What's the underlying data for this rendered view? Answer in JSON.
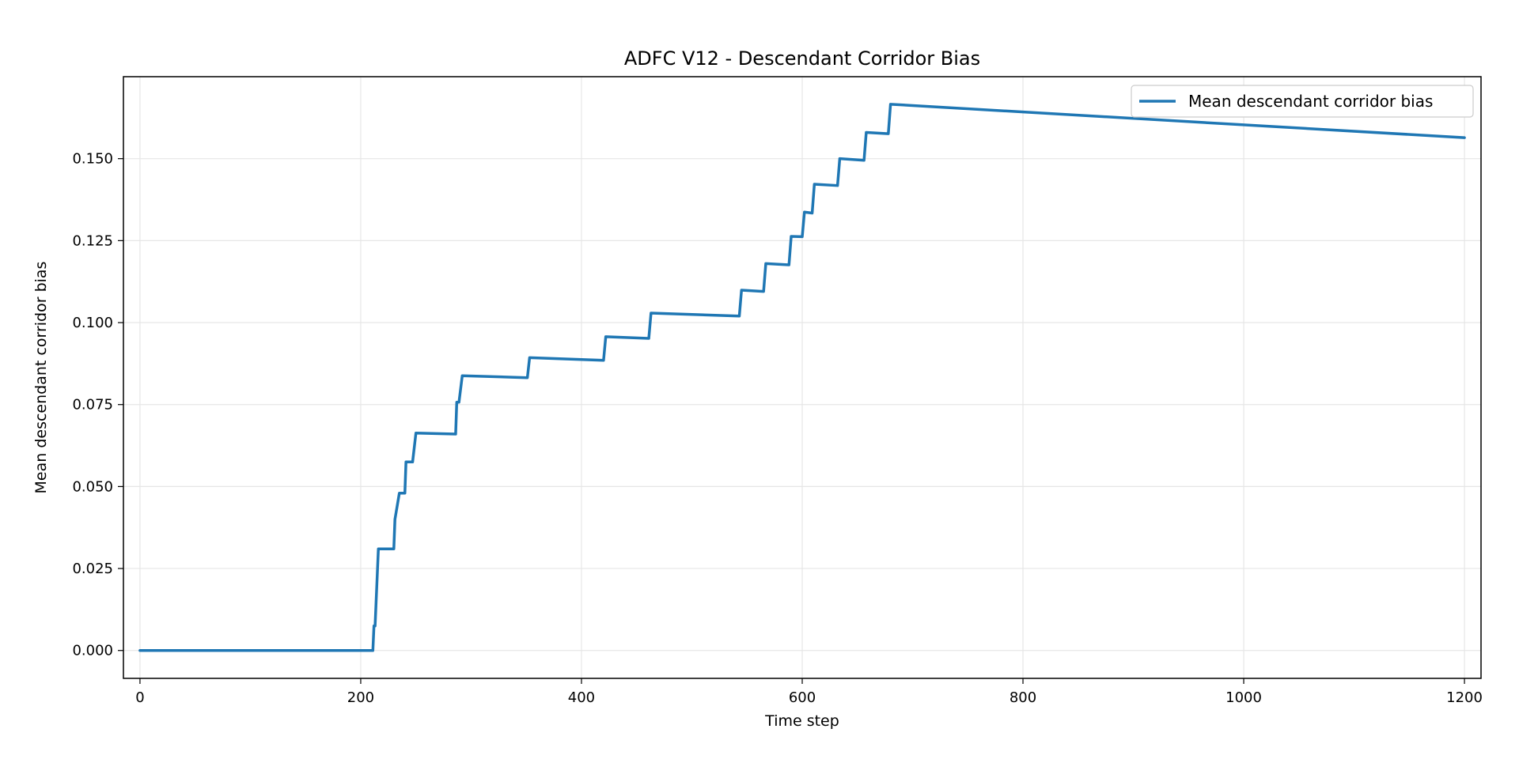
{
  "chart_data": {
    "type": "line",
    "title": "ADFC V12 - Descendant Corridor Bias",
    "xlabel": "Time step",
    "ylabel": "Mean descendant corridor bias",
    "xlim": [
      -15,
      1215
    ],
    "ylim": [
      -0.0085,
      0.175
    ],
    "xticks": [
      0,
      200,
      400,
      600,
      800,
      1000,
      1200
    ],
    "xtick_labels": [
      "0",
      "200",
      "400",
      "600",
      "800",
      "1000",
      "1200"
    ],
    "yticks": [
      0.0,
      0.025,
      0.05,
      0.075,
      0.1,
      0.125,
      0.15
    ],
    "ytick_labels": [
      "0.000",
      "0.025",
      "0.050",
      "0.075",
      "0.100",
      "0.125",
      "0.150"
    ],
    "grid": true,
    "legend_position": "upper-right",
    "colors": {
      "series": "#1f77b4",
      "grid": "#e6e6e6",
      "axis": "#000000"
    },
    "series": [
      {
        "name": "Mean descendant corridor bias",
        "x": [
          0,
          211,
          212,
          213,
          216,
          230,
          231,
          235,
          240,
          241,
          247,
          250,
          286,
          287,
          289,
          292,
          351,
          353,
          420,
          422,
          461,
          463,
          543,
          545,
          565,
          567,
          588,
          590,
          600,
          602,
          609,
          611,
          632,
          634,
          656,
          658,
          678,
          680,
          1200
        ],
        "y": [
          0.0,
          0.0,
          0.0075,
          0.0075,
          0.031,
          0.031,
          0.04,
          0.048,
          0.048,
          0.0575,
          0.0575,
          0.0663,
          0.066,
          0.0757,
          0.0757,
          0.0838,
          0.0832,
          0.0893,
          0.0885,
          0.0957,
          0.0952,
          0.1029,
          0.102,
          0.1099,
          0.1095,
          0.118,
          0.1176,
          0.1263,
          0.1262,
          0.1337,
          0.1334,
          0.1422,
          0.1418,
          0.15,
          0.1495,
          0.158,
          0.1576,
          0.1666,
          0.1564
        ]
      }
    ]
  }
}
